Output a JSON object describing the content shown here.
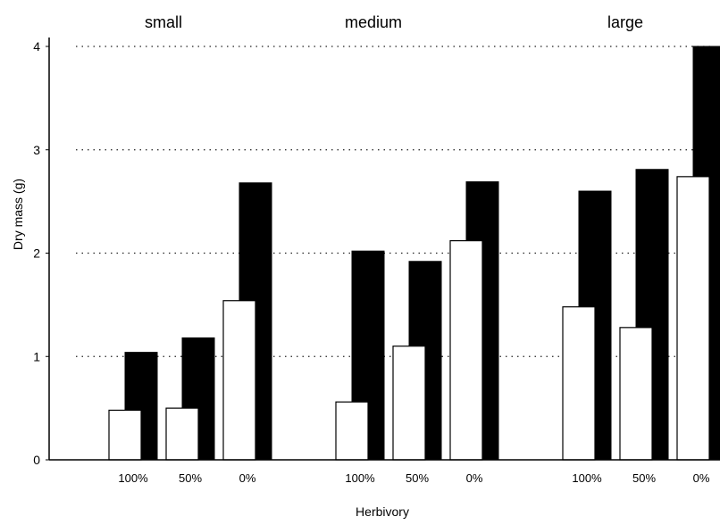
{
  "chart_data": {
    "type": "bar",
    "ylabel": "Dry mass (g)",
    "xlabel": "Herbivory",
    "ylim": [
      0,
      4
    ],
    "yticks": [
      0,
      1,
      2,
      3,
      4
    ],
    "grid": "dotted horizontal",
    "bar_colors": {
      "front": "#ffffff",
      "back": "#000000",
      "stroke": "#000000"
    },
    "groups": [
      {
        "name": "small",
        "categories": [
          "100%",
          "50%",
          "0%"
        ],
        "front_values": [
          0.48,
          0.5,
          1.54
        ],
        "back_values": [
          1.04,
          1.18,
          2.68
        ]
      },
      {
        "name": "medium",
        "categories": [
          "100%",
          "50%",
          "0%"
        ],
        "front_values": [
          0.56,
          1.1,
          2.12
        ],
        "back_values": [
          2.02,
          1.92,
          2.69
        ]
      },
      {
        "name": "large",
        "categories": [
          "100%",
          "50%",
          "0%"
        ],
        "front_values": [
          1.48,
          1.28,
          2.74
        ],
        "back_values": [
          2.6,
          2.81,
          4.0
        ]
      }
    ]
  }
}
